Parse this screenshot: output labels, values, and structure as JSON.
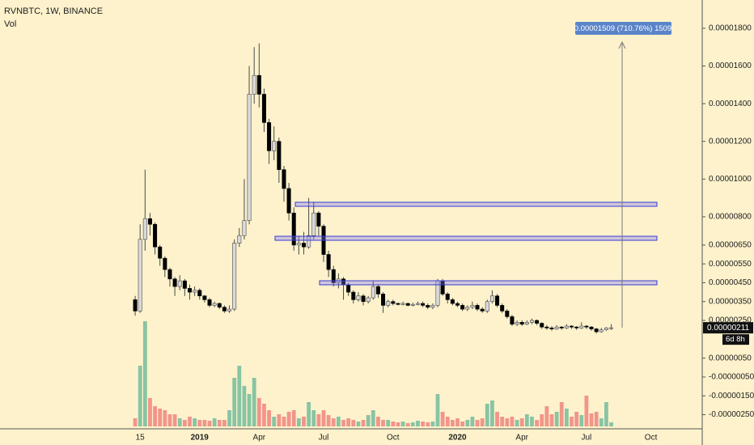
{
  "chart_data": {
    "type": "candlestick",
    "title": "RVNBTC, 1W, BINANCE",
    "volume_label": "Vol",
    "measure_label": "0.00001509 (710.76%) 1509",
    "last_price_label": "0.00000211",
    "countdown": "6d 8h",
    "up_color": "#dadada",
    "down_color": "#000000",
    "wick_color": "#4a4a4a",
    "volume_up_color": "#88c4a4",
    "volume_down_color": "#f2958a",
    "categories": [
      null,
      "15",
      null,
      null,
      null,
      null,
      null,
      null,
      null,
      null,
      null,
      null,
      null,
      "2019",
      null,
      null,
      null,
      null,
      null,
      null,
      null,
      null,
      null,
      null,
      null,
      "Apr",
      null,
      null,
      null,
      null,
      null,
      null,
      null,
      null,
      null,
      null,
      null,
      null,
      "Jul",
      null,
      null,
      null,
      null,
      null,
      null,
      null,
      null,
      null,
      null,
      null,
      null,
      null,
      "Oct",
      null,
      null,
      null,
      null,
      null,
      null,
      null,
      null,
      null,
      null,
      null,
      null,
      "2020",
      null,
      null,
      null,
      null,
      null,
      null,
      null,
      null,
      null,
      null,
      null,
      null,
      "Apr",
      null,
      null,
      null,
      null,
      null,
      null,
      null,
      null,
      null,
      null,
      null,
      null,
      "Jul",
      null,
      null,
      null,
      null,
      null,
      null,
      null,
      null,
      null,
      null,
      null,
      null,
      "Oct"
    ],
    "open": [
      3.6e-06,
      3e-06,
      6.8e-06,
      7.9e-06,
      7.6e-06,
      6.4e-06,
      5.8e-06,
      5.2e-06,
      4.7e-06,
      4.3e-06,
      4.6e-06,
      4.2e-06,
      4e-06,
      4.1e-06,
      3.8e-06,
      3.6e-06,
      3.3e-06,
      3.4e-06,
      3.2e-06,
      3e-06,
      3.1e-06,
      6.6e-06,
      7e-06,
      7.8e-06,
      1.45e-05,
      1.55e-05,
      1.45e-05,
      1.3e-05,
      1.15e-05,
      1.2e-05,
      1.05e-05,
      9.5e-06,
      8.2e-06,
      6.5e-06,
      6.6e-06,
      6.4e-06,
      7e-06,
      8.2e-06,
      7.5e-06,
      6e-06,
      5.2e-06,
      4.5e-06,
      4.7e-06,
      4.4e-06,
      4e-06,
      3.6e-06,
      3.8e-06,
      3.5e-06,
      3.7e-06,
      4.3e-06,
      3.9e-06,
      3.3e-06,
      3.5e-06,
      3.4e-06,
      3.35e-06,
      3.4e-06,
      3.3e-06,
      3.35e-06,
      3.4e-06,
      3.3e-06,
      3.2e-06,
      3.3e-06,
      4.6e-06,
      3.9e-06,
      3.6e-06,
      3.4e-06,
      3.3e-06,
      3.1e-06,
      3.2e-06,
      3.3e-06,
      3.1e-06,
      3e-06,
      3.5e-06,
      3.8e-06,
      3.3e-06,
      3e-06,
      2.7e-06,
      2.3e-06,
      2.4e-06,
      2.3e-06,
      2.4e-06,
      2.5e-06,
      2.35e-06,
      2.15e-06,
      2.1e-06,
      2.05e-06,
      2.15e-06,
      2.1e-06,
      2.2e-06,
      2.15e-06,
      2.1e-06,
      2.2e-06,
      2.15e-06,
      2.05e-06,
      1.9e-06,
      2e-06,
      2.1e-06,
      null,
      null,
      null,
      null,
      null,
      null,
      null,
      null
    ],
    "close": [
      3e-06,
      6.8e-06,
      7.9e-06,
      7.6e-06,
      6.4e-06,
      5.8e-06,
      5.2e-06,
      4.7e-06,
      4.3e-06,
      4.6e-06,
      4.2e-06,
      4e-06,
      4.1e-06,
      3.8e-06,
      3.6e-06,
      3.3e-06,
      3.4e-06,
      3.2e-06,
      3e-06,
      3.1e-06,
      6.6e-06,
      7e-06,
      7.8e-06,
      1.45e-05,
      1.55e-05,
      1.45e-05,
      1.3e-05,
      1.15e-05,
      1.2e-05,
      1.05e-05,
      9.5e-06,
      8.2e-06,
      6.5e-06,
      6.6e-06,
      6.4e-06,
      7e-06,
      8.2e-06,
      7.5e-06,
      6e-06,
      5.2e-06,
      4.5e-06,
      4.7e-06,
      4.4e-06,
      4e-06,
      3.6e-06,
      3.8e-06,
      3.5e-06,
      3.7e-06,
      4.3e-06,
      3.9e-06,
      3.3e-06,
      3.5e-06,
      3.4e-06,
      3.35e-06,
      3.4e-06,
      3.3e-06,
      3.35e-06,
      3.4e-06,
      3.3e-06,
      3.2e-06,
      3.3e-06,
      4.6e-06,
      3.9e-06,
      3.6e-06,
      3.4e-06,
      3.3e-06,
      3.1e-06,
      3.2e-06,
      3.3e-06,
      3.1e-06,
      3e-06,
      3.5e-06,
      3.8e-06,
      3.3e-06,
      3e-06,
      2.7e-06,
      2.3e-06,
      2.4e-06,
      2.3e-06,
      2.4e-06,
      2.5e-06,
      2.35e-06,
      2.15e-06,
      2.1e-06,
      2.05e-06,
      2.15e-06,
      2.1e-06,
      2.2e-06,
      2.15e-06,
      2.1e-06,
      2.2e-06,
      2.15e-06,
      2.05e-06,
      1.9e-06,
      2e-06,
      2.1e-06,
      2.11e-06,
      null,
      null,
      null,
      null,
      null,
      null,
      null,
      null
    ],
    "high": [
      3.8e-06,
      7.6e-06,
      1.05e-05,
      8.2e-06,
      7.7e-06,
      6.5e-06,
      5.9e-06,
      5.3e-06,
      4.8e-06,
      4.9e-06,
      4.7e-06,
      4.4e-06,
      4.3e-06,
      4.2e-06,
      3.85e-06,
      3.7e-06,
      3.5e-06,
      3.45e-06,
      3.3e-06,
      3.3e-06,
      6.8e-06,
      7.4e-06,
      1e-05,
      1.6e-05,
      1.7e-05,
      1.72e-05,
      1.48e-05,
      1.32e-05,
      1.28e-05,
      1.22e-05,
      1.07e-05,
      9.8e-06,
      8.5e-06,
      7e-06,
      7.2e-06,
      9e-06,
      8.8e-06,
      8.3e-06,
      7.6e-06,
      6.2e-06,
      5.4e-06,
      5e-06,
      4.8e-06,
      4.5e-06,
      4.1e-06,
      4e-06,
      3.9e-06,
      3.8e-06,
      4.6e-06,
      4.4e-06,
      4e-06,
      3.6e-06,
      3.6e-06,
      3.45e-06,
      3.5e-06,
      3.45e-06,
      3.45e-06,
      3.5e-06,
      3.5e-06,
      3.4e-06,
      3.4e-06,
      4.7e-06,
      4.7e-06,
      4e-06,
      3.7e-06,
      3.5e-06,
      3.4e-06,
      3.3e-06,
      3.5e-06,
      3.4e-06,
      3.2e-06,
      3.6e-06,
      4.1e-06,
      3.9e-06,
      3.4e-06,
      3.1e-06,
      2.8e-06,
      2.5e-06,
      2.5e-06,
      2.5e-06,
      2.6e-06,
      2.55e-06,
      2.4e-06,
      2.25e-06,
      2.2e-06,
      2.25e-06,
      2.2e-06,
      2.3e-06,
      2.25e-06,
      2.2e-06,
      2.4e-06,
      2.25e-06,
      2.2e-06,
      2.1e-06,
      2.1e-06,
      2.15e-06,
      2.3e-06,
      null,
      null,
      null,
      null,
      null,
      null,
      null,
      null
    ],
    "low": [
      2.75e-06,
      2.9e-06,
      6.2e-06,
      7e-06,
      6e-06,
      5.4e-06,
      4.8e-06,
      4.3e-06,
      3.8e-06,
      4.1e-06,
      3.8e-06,
      3.6e-06,
      3.8e-06,
      3.6e-06,
      3.45e-06,
      3.2e-06,
      3.2e-06,
      3.1e-06,
      2.9e-06,
      2.9e-06,
      3e-06,
      6.4e-06,
      6.8e-06,
      7.6e-06,
      1.4e-05,
      1.38e-05,
      1.25e-05,
      1.08e-05,
      1.1e-05,
      9.8e-06,
      8.8e-06,
      7.8e-06,
      6.2e-06,
      6e-06,
      6e-06,
      6.3e-06,
      6.8e-06,
      7e-06,
      5.6e-06,
      4.8e-06,
      4.3e-06,
      4.2e-06,
      3.6e-06,
      3.8e-06,
      3.4e-06,
      3.5e-06,
      3.3e-06,
      3.4e-06,
      3.6e-06,
      3.7e-06,
      2.9e-06,
      3.2e-06,
      3.3e-06,
      3.3e-06,
      3.3e-06,
      3.25e-06,
      3.25e-06,
      3.3e-06,
      3.2e-06,
      3.1e-06,
      3.1e-06,
      3.2e-06,
      3.8e-06,
      3.4e-06,
      3.3e-06,
      3.2e-06,
      3e-06,
      3e-06,
      3.1e-06,
      3e-06,
      2.9e-06,
      2.9e-06,
      3.4e-06,
      3.2e-06,
      2.9e-06,
      2.6e-06,
      2.2e-06,
      2.2e-06,
      2.2e-06,
      2.25e-06,
      2.3e-06,
      2.25e-06,
      2.05e-06,
      2e-06,
      1.95e-06,
      2e-06,
      2e-06,
      2.05e-06,
      2.05e-06,
      2e-06,
      2.05e-06,
      2.05e-06,
      1.95e-06,
      1.8e-06,
      1.85e-06,
      1.95e-06,
      2e-06,
      null,
      null,
      null,
      null,
      null,
      null,
      null,
      null
    ],
    "volume": [
      10,
      75,
      130,
      35,
      25,
      22,
      20,
      15,
      15,
      10,
      8,
      12,
      10,
      8,
      8,
      7,
      10,
      8,
      8,
      20,
      60,
      75,
      50,
      40,
      60,
      35,
      28,
      20,
      12,
      15,
      12,
      18,
      20,
      10,
      12,
      30,
      20,
      15,
      20,
      14,
      10,
      12,
      8,
      10,
      8,
      6,
      8,
      14,
      20,
      12,
      8,
      8,
      6,
      5,
      6,
      4,
      5,
      7,
      6,
      5,
      6,
      40,
      18,
      12,
      8,
      10,
      6,
      8,
      12,
      8,
      10,
      28,
      32,
      18,
      12,
      10,
      12,
      8,
      10,
      15,
      12,
      8,
      15,
      25,
      15,
      18,
      30,
      22,
      12,
      18,
      14,
      38,
      16,
      18,
      10,
      30,
      5,
      null,
      null,
      null,
      null,
      null,
      null,
      null,
      null
    ],
    "ylim": [
      -3.25e-06,
      1.95e-05
    ],
    "yticks": [
      {
        "value": 1.8e-05,
        "label": "0.00001800"
      },
      {
        "value": 1.6e-05,
        "label": "0.00001600"
      },
      {
        "value": 1.4e-05,
        "label": "0.00001400"
      },
      {
        "value": 1.2e-05,
        "label": "0.00001200"
      },
      {
        "value": 1e-05,
        "label": "0.00001000"
      },
      {
        "value": 8e-06,
        "label": "0.00000800"
      },
      {
        "value": 6.5e-06,
        "label": "0.00000650"
      },
      {
        "value": 5.5e-06,
        "label": "0.00000550"
      },
      {
        "value": 4.5e-06,
        "label": "0.00000450"
      },
      {
        "value": 3.5e-06,
        "label": "0.00000350"
      },
      {
        "value": 2.5e-06,
        "label": "0.00000250"
      },
      {
        "value": 5e-07,
        "label": "0.00000050"
      },
      {
        "value": -5e-07,
        "label": "-0.00000050"
      },
      {
        "value": -1.5e-06,
        "label": "-0.00000150"
      },
      {
        "value": -2.5e-06,
        "label": "-0.00000250"
      }
    ]
  }
}
